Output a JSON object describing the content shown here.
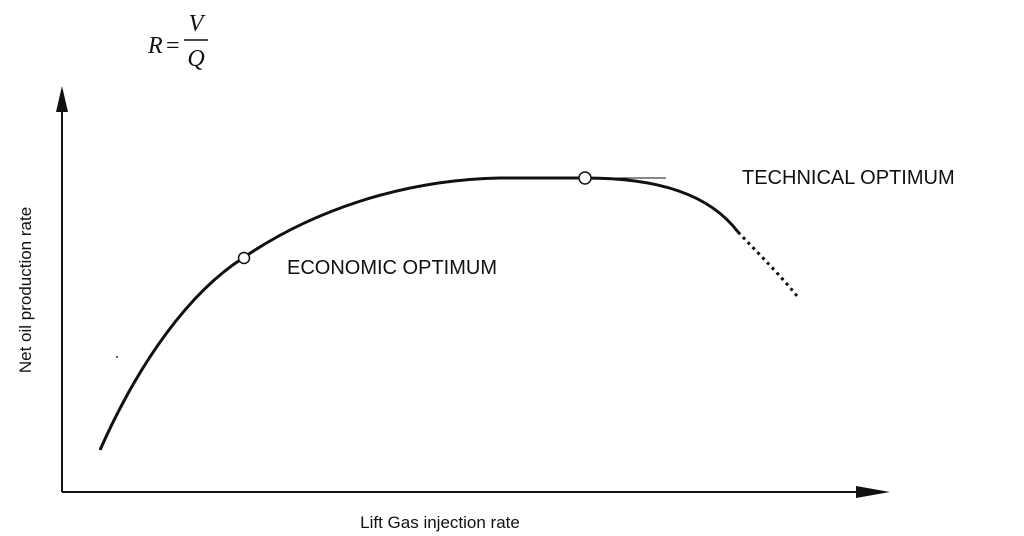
{
  "formula": {
    "lhs": "R",
    "eq": "=",
    "numerator": "V",
    "denominator": "Q"
  },
  "diagram": {
    "y_axis_label": "Net oil production rate",
    "x_axis_label": "Lift Gas injection rate",
    "technical_optimum": "TECHNICAL OPTIMUM",
    "economic_optimum": "ECONOMIC OPTIMUM"
  }
}
